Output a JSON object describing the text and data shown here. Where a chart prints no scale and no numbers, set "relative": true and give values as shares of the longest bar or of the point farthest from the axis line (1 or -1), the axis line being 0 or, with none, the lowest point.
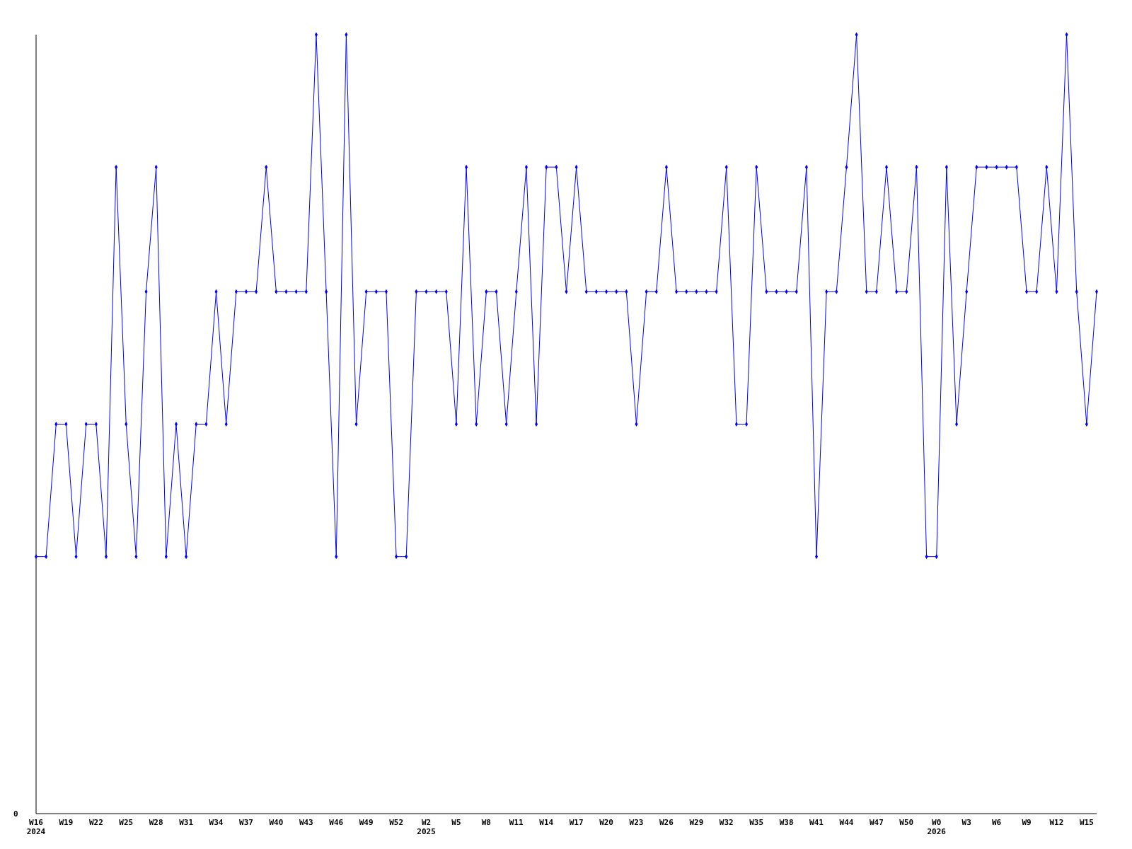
{
  "chart_data": {
    "type": "line",
    "relative": true,
    "marker": "diamond",
    "line_style": "solid",
    "annotations": [
      "0"
    ],
    "categories": [
      "W16\n2024",
      null,
      null,
      "W19",
      null,
      null,
      "W22",
      null,
      null,
      "W25",
      null,
      null,
      "W28",
      null,
      null,
      "W31",
      null,
      null,
      "W34",
      null,
      null,
      "W37",
      null,
      null,
      "W40",
      null,
      null,
      "W43",
      null,
      null,
      "W46",
      null,
      null,
      "W49",
      null,
      null,
      "W52",
      null,
      null,
      "W2\n2025",
      null,
      null,
      "W5",
      null,
      null,
      "W8",
      null,
      null,
      "W11",
      null,
      null,
      "W14",
      null,
      null,
      "W17",
      null,
      null,
      "W20",
      null,
      null,
      "W23",
      null,
      null,
      "W26",
      null,
      null,
      "W29",
      null,
      null,
      "W32",
      null,
      null,
      "W35",
      null,
      null,
      "W38",
      null,
      null,
      "W41",
      null,
      null,
      "W44",
      null,
      null,
      "W47",
      null,
      null,
      "W50",
      null,
      null,
      "W0\n2026",
      null,
      null,
      "W3",
      null,
      null,
      "W6",
      null,
      null,
      "W9",
      null,
      null,
      "W12",
      null,
      null,
      "W15",
      null
    ],
    "series": [
      {
        "color": "#0000ff",
        "values": [
          0.33,
          0.33,
          0.5,
          0.5,
          0.33,
          0.5,
          0.5,
          0.33,
          0.83,
          0.5,
          0.33,
          0.67,
          0.83,
          0.33,
          0.5,
          0.33,
          0.5,
          0.5,
          0.67,
          0.5,
          0.67,
          0.67,
          0.67,
          0.83,
          0.67,
          0.67,
          0.67,
          0.67,
          1,
          0.67,
          0.33,
          1,
          0.5,
          0.67,
          0.67,
          0.67,
          0.33,
          0.33,
          0.67,
          0.67,
          0.67,
          0.67,
          0.5,
          0.83,
          0.5,
          0.67,
          0.67,
          0.5,
          0.67,
          0.83,
          0.5,
          0.83,
          0.83,
          0.67,
          0.83,
          0.67,
          0.67,
          0.67,
          0.67,
          0.67,
          0.5,
          0.67,
          0.67,
          0.83,
          0.67,
          0.67,
          0.67,
          0.67,
          0.67,
          0.83,
          0.5,
          0.5,
          0.83,
          0.67,
          0.67,
          0.67,
          0.67,
          0.83,
          0.33,
          0.67,
          0.67,
          0.83,
          1,
          0.67,
          0.67,
          0.83,
          0.67,
          0.67,
          0.83,
          0.33,
          0.33,
          0.83,
          0.5,
          0.67,
          0.83,
          0.83,
          0.83,
          0.83,
          0.83,
          0.67,
          0.67,
          0.83,
          0.67,
          1,
          0.67,
          0.5,
          0.67
        ]
      }
    ]
  }
}
